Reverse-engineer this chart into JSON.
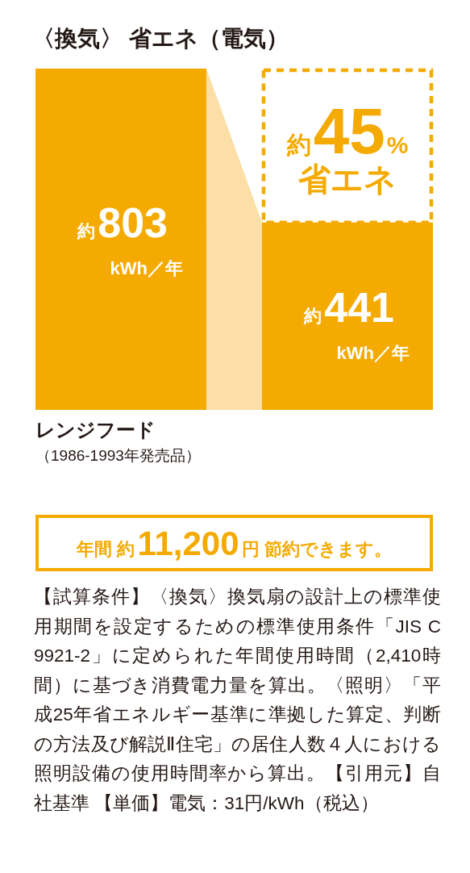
{
  "chart_data": {
    "type": "bar",
    "title": "〈換気〉 省エネ（電気）",
    "categories": [
      "レンジフード（1986-1993年発売品）",
      null
    ],
    "values": [
      803,
      441
    ],
    "color": "#f4aa00",
    "value_labels": [
      "約803\nkWh／年",
      "約441\nkWh／年"
    ],
    "annotations": [
      "約45%\n省エネ",
      "年間 約11,200円 節約できます。",
      "【試算条件】〈換気〉換気扇の設計上の標準使用期間を設定するための標準使用条件「JIS C 9921-2」に定められた年間使用時間（2,410時間）に基づき消費電力量を算出。〈照明〉「平成25年省エネルギー基準に準拠した算定、判断の方法及び解説Ⅱ住宅」の居住人数４人における照明設備の使用時間率から算出。【引用元】自社基準 【単価】電気：31円/kWh（税込）"
    ]
  }
}
